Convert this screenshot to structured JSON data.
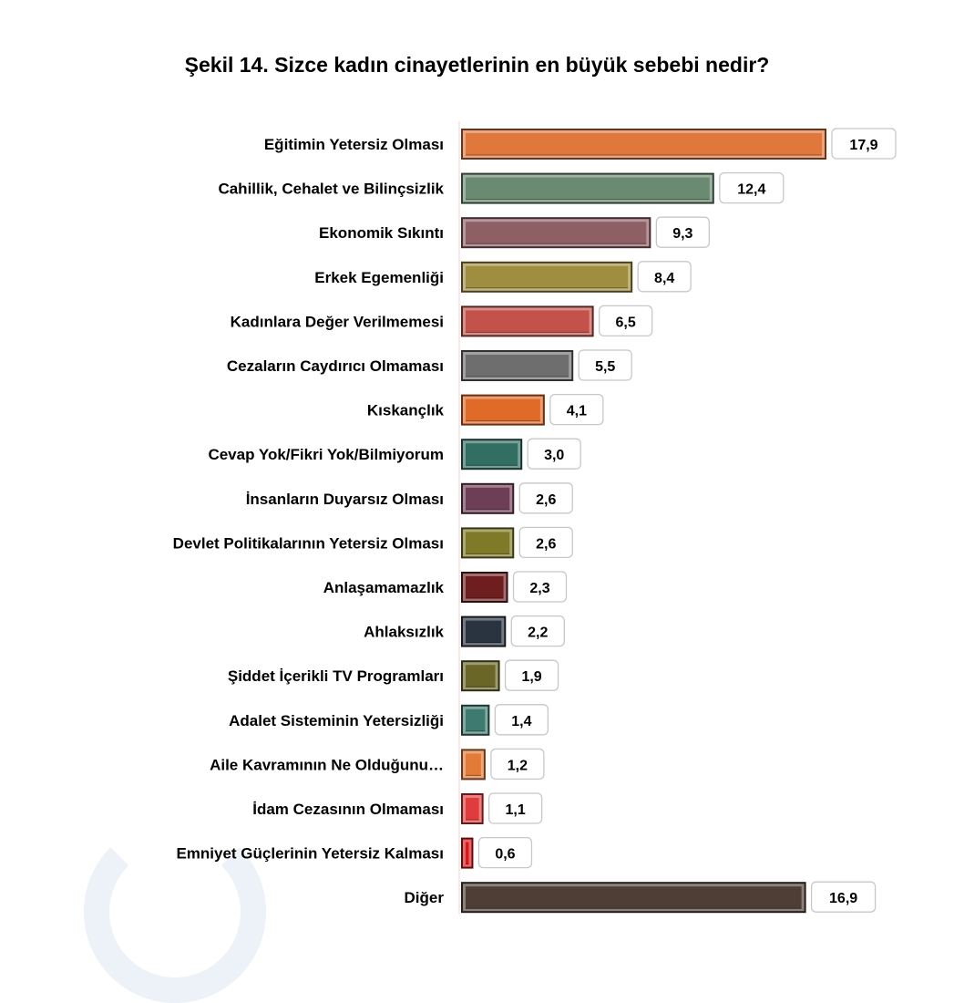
{
  "chart_data": {
    "type": "bar",
    "orientation": "horizontal",
    "title": "Şekil 14. Sizce kadın cinayetlerinin en büyük sebebi nedir?",
    "xlabel": "",
    "ylabel": "",
    "xlim": [
      0,
      17.9
    ],
    "grid": false,
    "categories": [
      "Eğitimin Yetersiz Olması",
      "Cahillik, Cehalet ve Bilinçsizlik",
      "Ekonomik Sıkıntı",
      "Erkek Egemenliği",
      "Kadınlara Değer Verilmemesi",
      "Cezaların Caydırıcı Olmaması",
      "Kıskançlık",
      "Cevap Yok/Fikri Yok/Bilmiyorum",
      "İnsanların Duyarsız Olması",
      "Devlet Politikalarının Yetersiz Olması",
      "Anlaşamamazlık",
      "Ahlaksızlık",
      "Şiddet İçerikli TV Programları",
      "Adalet Sisteminin Yetersizliği",
      "Aile Kavramının Ne Olduğunu…",
      "İdam Cezasının Olmaması",
      "Emniyet Güçlerinin Yetersiz Kalması",
      "Diğer"
    ],
    "values": [
      17.9,
      12.4,
      9.3,
      8.4,
      6.5,
      5.5,
      4.1,
      3.0,
      2.6,
      2.6,
      2.3,
      2.2,
      1.9,
      1.4,
      1.2,
      1.1,
      0.6,
      16.9
    ],
    "value_labels": [
      "17,9",
      "12,4",
      "9,3",
      "8,4",
      "6,5",
      "5,5",
      "4,1",
      "3,0",
      "2,6",
      "2,6",
      "2,3",
      "2,2",
      "1,9",
      "1,4",
      "1,2",
      "1,1",
      "0,6",
      "16,9"
    ],
    "colors": [
      "#e0783c",
      "#6b8a72",
      "#8f5f66",
      "#a08e40",
      "#c2524a",
      "#6e6e6e",
      "#e06a28",
      "#336e62",
      "#6e3e56",
      "#7e7a28",
      "#6e1e1e",
      "#2a3440",
      "#6a6628",
      "#3e7a70",
      "#e27a38",
      "#e03c3c",
      "#d81818",
      "#4e3e36"
    ]
  }
}
